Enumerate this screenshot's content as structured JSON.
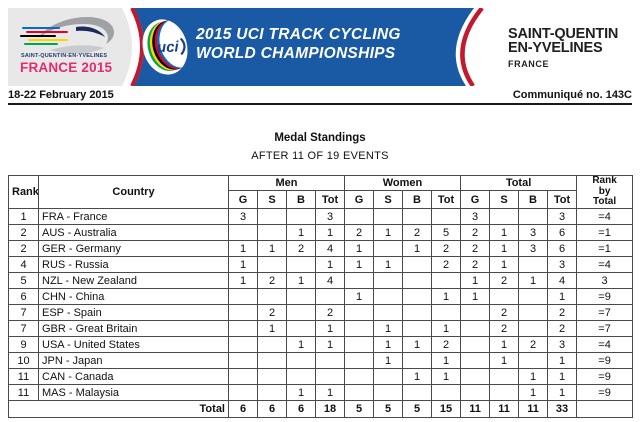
{
  "header": {
    "logo": {
      "location_small": "SAINT-QUENTIN-EN-YVELINES",
      "event": "FRANCE 2015"
    },
    "banner": {
      "uci": "uci",
      "title_line1": "2015 UCI TRACK CYCLING",
      "title_line2": "WORLD CHAMPIONSHIPS"
    },
    "host": {
      "line1": "SAINT-QUENTIN",
      "line2": "EN-YVELINES",
      "line3": "FRANCE"
    },
    "date_range": "18-22 February 2015",
    "communique": "Communiqué no. 143C"
  },
  "title": "Medal Standings",
  "subtitle": "AFTER 11 OF 19 EVENTS",
  "table": {
    "headers": {
      "rank": "Rank",
      "country": "Country",
      "groups": [
        "Men",
        "Women",
        "Total"
      ],
      "medals": [
        "G",
        "S",
        "B",
        "Tot"
      ],
      "rank_by_total": "Rank\nby\nTotal"
    },
    "rows": [
      {
        "rank": "1",
        "country": "FRA - France",
        "men": [
          "3",
          "",
          "",
          "3"
        ],
        "women": [
          "",
          "",
          "",
          ""
        ],
        "total": [
          "3",
          "",
          "",
          "3"
        ],
        "rank_by_total": "=4"
      },
      {
        "rank": "2",
        "country": "AUS - Australia",
        "men": [
          "",
          "",
          "1",
          "1"
        ],
        "women": [
          "2",
          "1",
          "2",
          "5"
        ],
        "total": [
          "2",
          "1",
          "3",
          "6"
        ],
        "rank_by_total": "=1"
      },
      {
        "rank": "2",
        "country": "GER - Germany",
        "men": [
          "1",
          "1",
          "2",
          "4"
        ],
        "women": [
          "1",
          "",
          "1",
          "2"
        ],
        "total": [
          "2",
          "1",
          "3",
          "6"
        ],
        "rank_by_total": "=1"
      },
      {
        "rank": "4",
        "country": "RUS - Russia",
        "men": [
          "1",
          "",
          "",
          "1"
        ],
        "women": [
          "1",
          "1",
          "",
          "2"
        ],
        "total": [
          "2",
          "1",
          "",
          "3"
        ],
        "rank_by_total": "=4"
      },
      {
        "rank": "5",
        "country": "NZL - New Zealand",
        "men": [
          "1",
          "2",
          "1",
          "4"
        ],
        "women": [
          "",
          "",
          "",
          ""
        ],
        "total": [
          "1",
          "2",
          "1",
          "4"
        ],
        "rank_by_total": "3"
      },
      {
        "rank": "6",
        "country": "CHN - China",
        "men": [
          "",
          "",
          "",
          ""
        ],
        "women": [
          "1",
          "",
          "",
          "1"
        ],
        "total": [
          "1",
          "",
          "",
          "1"
        ],
        "rank_by_total": "=9"
      },
      {
        "rank": "7",
        "country": "ESP - Spain",
        "men": [
          "",
          "2",
          "",
          "2"
        ],
        "women": [
          "",
          "",
          "",
          ""
        ],
        "total": [
          "",
          "2",
          "",
          "2"
        ],
        "rank_by_total": "=7"
      },
      {
        "rank": "7",
        "country": "GBR - Great Britain",
        "men": [
          "",
          "1",
          "",
          "1"
        ],
        "women": [
          "",
          "1",
          "",
          "1"
        ],
        "total": [
          "",
          "2",
          "",
          "2"
        ],
        "rank_by_total": "=7"
      },
      {
        "rank": "9",
        "country": "USA - United States",
        "men": [
          "",
          "",
          "1",
          "1"
        ],
        "women": [
          "",
          "1",
          "1",
          "2"
        ],
        "total": [
          "",
          "1",
          "2",
          "3"
        ],
        "rank_by_total": "=4"
      },
      {
        "rank": "10",
        "country": "JPN - Japan",
        "men": [
          "",
          "",
          "",
          ""
        ],
        "women": [
          "",
          "1",
          "",
          "1"
        ],
        "total": [
          "",
          "1",
          "",
          "1"
        ],
        "rank_by_total": "=9"
      },
      {
        "rank": "11",
        "country": "CAN - Canada",
        "men": [
          "",
          "",
          "",
          ""
        ],
        "women": [
          "",
          "",
          "1",
          "1"
        ],
        "total": [
          "",
          "",
          "1",
          "1"
        ],
        "rank_by_total": "=9"
      },
      {
        "rank": "11",
        "country": "MAS - Malaysia",
        "men": [
          "",
          "",
          "1",
          "1"
        ],
        "women": [
          "",
          "",
          "",
          ""
        ],
        "total": [
          "",
          "",
          "1",
          "1"
        ],
        "rank_by_total": "=9"
      }
    ],
    "total_row": {
      "label": "Total",
      "men": [
        "6",
        "6",
        "6",
        "18"
      ],
      "women": [
        "5",
        "5",
        "5",
        "15"
      ],
      "total": [
        "11",
        "11",
        "11",
        "33"
      ],
      "rank_by_total": ""
    }
  },
  "colors": {
    "banner_blue": "#1A5AA5",
    "accent_red": "#C4182D",
    "event_pink": "#E72A6F",
    "logo_gray": "#E8E8E8",
    "uci_navy": "#17418F",
    "host_text": "#1F1F1F",
    "table_border": "#4A4A4A",
    "logo_text_navy": "#21396F",
    "rainbow_green": "#00A651",
    "rainbow_yellow": "#FFD100",
    "rainbow_black": "#000000",
    "rainbow_red": "#E4002B",
    "rainbow_blue": "#0072BC",
    "swoosh_gray": "#9FA1A4",
    "swoosh_gray_light": "#C9CACC",
    "swoosh_navy": "#1B2A5E"
  }
}
